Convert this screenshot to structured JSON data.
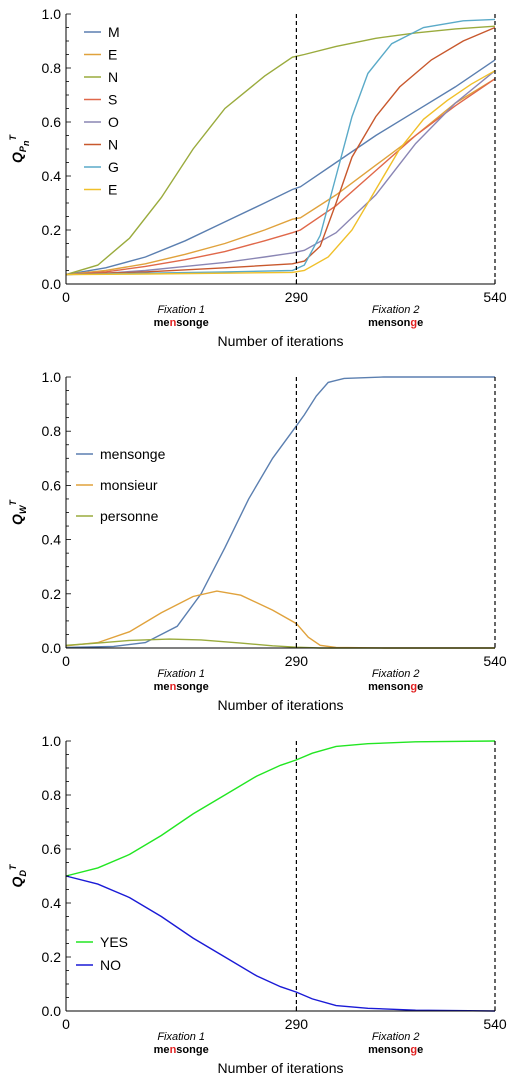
{
  "chart_data": [
    {
      "type": "line",
      "ylabel_main": "Q",
      "ylabel_sub": "P",
      "ylabel_subsub": "n",
      "ylabel_sup": "T",
      "xlabel": "Number of iterations",
      "xlim": [
        0,
        540
      ],
      "ylim": [
        0,
        1
      ],
      "x_ticks": [
        "0",
        "290",
        "540"
      ],
      "y_ticks": [
        "0.0",
        "0.2",
        "0.4",
        "0.6",
        "0.8",
        "1.0"
      ],
      "vlines": [
        290,
        540
      ],
      "fixations": [
        {
          "label": "Fixation 1",
          "x": 145,
          "word_pre": "me",
          "word_hl": "n",
          "word_post": "songe"
        },
        {
          "label": "Fixation 2",
          "x": 415,
          "word_pre": "menson",
          "word_hl": "g",
          "word_post": "e"
        }
      ],
      "legend": "top-left",
      "series": [
        {
          "name": "M",
          "color": "#5b7fb0",
          "points": [
            [
              0,
              0.035
            ],
            [
              50,
              0.06
            ],
            [
              100,
              0.1
            ],
            [
              150,
              0.16
            ],
            [
              200,
              0.23
            ],
            [
              250,
              0.3
            ],
            [
              285,
              0.35
            ],
            [
              295,
              0.36
            ],
            [
              340,
              0.45
            ],
            [
              390,
              0.55
            ],
            [
              440,
              0.64
            ],
            [
              490,
              0.73
            ],
            [
              540,
              0.83
            ]
          ]
        },
        {
          "name": "E",
          "color": "#e0a23c",
          "points": [
            [
              0,
              0.035
            ],
            [
              50,
              0.05
            ],
            [
              100,
              0.075
            ],
            [
              150,
              0.11
            ],
            [
              200,
              0.15
            ],
            [
              250,
              0.2
            ],
            [
              285,
              0.24
            ],
            [
              295,
              0.245
            ],
            [
              340,
              0.33
            ],
            [
              390,
              0.44
            ],
            [
              440,
              0.55
            ],
            [
              490,
              0.67
            ],
            [
              540,
              0.76
            ]
          ]
        },
        {
          "name": "N",
          "color": "#9aab3d",
          "points": [
            [
              0,
              0.035
            ],
            [
              40,
              0.07
            ],
            [
              80,
              0.17
            ],
            [
              120,
              0.32
            ],
            [
              160,
              0.5
            ],
            [
              200,
              0.65
            ],
            [
              250,
              0.77
            ],
            [
              285,
              0.84
            ],
            [
              300,
              0.85
            ],
            [
              340,
              0.88
            ],
            [
              390,
              0.91
            ],
            [
              440,
              0.93
            ],
            [
              490,
              0.945
            ],
            [
              540,
              0.955
            ]
          ]
        },
        {
          "name": "S",
          "color": "#e0684a",
          "points": [
            [
              0,
              0.035
            ],
            [
              50,
              0.045
            ],
            [
              100,
              0.065
            ],
            [
              150,
              0.09
            ],
            [
              200,
              0.12
            ],
            [
              250,
              0.16
            ],
            [
              285,
              0.19
            ],
            [
              295,
              0.2
            ],
            [
              340,
              0.29
            ],
            [
              390,
              0.42
            ],
            [
              440,
              0.55
            ],
            [
              490,
              0.66
            ],
            [
              540,
              0.76
            ]
          ]
        },
        {
          "name": "O",
          "color": "#8a86b4",
          "points": [
            [
              0,
              0.035
            ],
            [
              50,
              0.04
            ],
            [
              100,
              0.05
            ],
            [
              150,
              0.065
            ],
            [
              200,
              0.08
            ],
            [
              250,
              0.1
            ],
            [
              285,
              0.115
            ],
            [
              300,
              0.125
            ],
            [
              340,
              0.19
            ],
            [
              390,
              0.33
            ],
            [
              440,
              0.52
            ],
            [
              490,
              0.67
            ],
            [
              540,
              0.79
            ]
          ]
        },
        {
          "name": "N",
          "color": "#c8582d",
          "points": [
            [
              0,
              0.035
            ],
            [
              100,
              0.045
            ],
            [
              200,
              0.06
            ],
            [
              285,
              0.075
            ],
            [
              300,
              0.085
            ],
            [
              320,
              0.14
            ],
            [
              340,
              0.3
            ],
            [
              360,
              0.47
            ],
            [
              390,
              0.62
            ],
            [
              420,
              0.73
            ],
            [
              460,
              0.83
            ],
            [
              500,
              0.9
            ],
            [
              540,
              0.95
            ]
          ]
        },
        {
          "name": "G",
          "color": "#5aaac8",
          "points": [
            [
              0,
              0.035
            ],
            [
              100,
              0.04
            ],
            [
              200,
              0.045
            ],
            [
              285,
              0.05
            ],
            [
              300,
              0.07
            ],
            [
              320,
              0.18
            ],
            [
              340,
              0.4
            ],
            [
              360,
              0.62
            ],
            [
              380,
              0.78
            ],
            [
              410,
              0.89
            ],
            [
              450,
              0.95
            ],
            [
              500,
              0.975
            ],
            [
              540,
              0.98
            ]
          ]
        },
        {
          "name": "E",
          "color": "#f0c02a",
          "points": [
            [
              0,
              0.035
            ],
            [
              100,
              0.037
            ],
            [
              200,
              0.04
            ],
            [
              285,
              0.043
            ],
            [
              300,
              0.05
            ],
            [
              330,
              0.1
            ],
            [
              360,
              0.2
            ],
            [
              390,
              0.35
            ],
            [
              420,
              0.5
            ],
            [
              450,
              0.61
            ],
            [
              480,
              0.68
            ],
            [
              510,
              0.74
            ],
            [
              540,
              0.79
            ]
          ]
        }
      ]
    },
    {
      "type": "line",
      "ylabel_main": "Q",
      "ylabel_sub": "W",
      "ylabel_subsub": "",
      "ylabel_sup": "T",
      "xlabel": "Number of iterations",
      "xlim": [
        0,
        540
      ],
      "ylim": [
        0,
        1
      ],
      "x_ticks": [
        "0",
        "290",
        "540"
      ],
      "y_ticks": [
        "0.0",
        "0.2",
        "0.4",
        "0.6",
        "0.8",
        "1.0"
      ],
      "vlines": [
        290,
        540
      ],
      "fixations": [
        {
          "label": "Fixation 1",
          "x": 145,
          "word_pre": "me",
          "word_hl": "n",
          "word_post": "songe"
        },
        {
          "label": "Fixation 2",
          "x": 415,
          "word_pre": "menson",
          "word_hl": "g",
          "word_post": "e"
        }
      ],
      "legend": "center-left",
      "series": [
        {
          "name": "mensonge",
          "color": "#5b7fb0",
          "points": [
            [
              0,
              0.002
            ],
            [
              60,
              0.006
            ],
            [
              100,
              0.02
            ],
            [
              140,
              0.08
            ],
            [
              170,
              0.2
            ],
            [
              200,
              0.37
            ],
            [
              230,
              0.55
            ],
            [
              260,
              0.7
            ],
            [
              290,
              0.82
            ],
            [
              300,
              0.86
            ],
            [
              315,
              0.93
            ],
            [
              330,
              0.98
            ],
            [
              350,
              0.995
            ],
            [
              400,
              1.0
            ],
            [
              540,
              1.0
            ]
          ]
        },
        {
          "name": "monsieur",
          "color": "#e0a23c",
          "points": [
            [
              0,
              0.008
            ],
            [
              40,
              0.02
            ],
            [
              80,
              0.06
            ],
            [
              120,
              0.13
            ],
            [
              160,
              0.19
            ],
            [
              190,
              0.21
            ],
            [
              220,
              0.195
            ],
            [
              260,
              0.14
            ],
            [
              290,
              0.09
            ],
            [
              305,
              0.04
            ],
            [
              320,
              0.01
            ],
            [
              340,
              0.002
            ],
            [
              400,
              0.0
            ],
            [
              540,
              0.0
            ]
          ]
        },
        {
          "name": "personne",
          "color": "#9aab3d",
          "points": [
            [
              0,
              0.01
            ],
            [
              40,
              0.018
            ],
            [
              80,
              0.028
            ],
            [
              130,
              0.033
            ],
            [
              170,
              0.03
            ],
            [
              220,
              0.018
            ],
            [
              260,
              0.008
            ],
            [
              290,
              0.003
            ],
            [
              320,
              0.0
            ],
            [
              540,
              0.0
            ]
          ]
        }
      ]
    },
    {
      "type": "line",
      "ylabel_main": "Q",
      "ylabel_sub": "D",
      "ylabel_subsub": "",
      "ylabel_sup": "T",
      "xlabel": "Number of iterations",
      "xlim": [
        0,
        540
      ],
      "ylim": [
        0,
        1
      ],
      "x_ticks": [
        "0",
        "290",
        "540"
      ],
      "y_ticks": [
        "0.0",
        "0.2",
        "0.4",
        "0.6",
        "0.8",
        "1.0"
      ],
      "vlines": [
        290,
        540
      ],
      "fixations": [
        {
          "label": "Fixation 1",
          "x": 145,
          "word_pre": "me",
          "word_hl": "n",
          "word_post": "songe"
        },
        {
          "label": "Fixation 2",
          "x": 415,
          "word_pre": "menson",
          "word_hl": "g",
          "word_post": "e"
        }
      ],
      "legend": "bottom-left",
      "series": [
        {
          "name": "YES",
          "color": "#22e622",
          "points": [
            [
              0,
              0.5
            ],
            [
              40,
              0.53
            ],
            [
              80,
              0.58
            ],
            [
              120,
              0.65
            ],
            [
              160,
              0.73
            ],
            [
              200,
              0.8
            ],
            [
              240,
              0.87
            ],
            [
              270,
              0.91
            ],
            [
              290,
              0.93
            ],
            [
              310,
              0.955
            ],
            [
              340,
              0.98
            ],
            [
              380,
              0.99
            ],
            [
              440,
              0.997
            ],
            [
              540,
              1.0
            ]
          ]
        },
        {
          "name": "NO",
          "color": "#1a1ad6",
          "points": [
            [
              0,
              0.5
            ],
            [
              40,
              0.47
            ],
            [
              80,
              0.42
            ],
            [
              120,
              0.35
            ],
            [
              160,
              0.27
            ],
            [
              200,
              0.2
            ],
            [
              240,
              0.13
            ],
            [
              270,
              0.09
            ],
            [
              290,
              0.07
            ],
            [
              310,
              0.045
            ],
            [
              340,
              0.02
            ],
            [
              380,
              0.01
            ],
            [
              440,
              0.003
            ],
            [
              540,
              0.0
            ]
          ]
        }
      ]
    }
  ],
  "accent": {
    "highlight": "#e02020",
    "vline": "#000000"
  }
}
